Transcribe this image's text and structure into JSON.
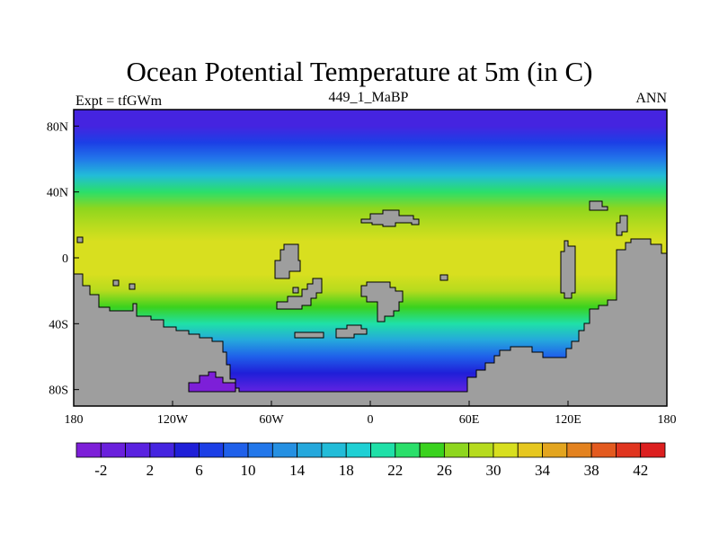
{
  "chart_data": {
    "type": "heatmap",
    "title": "Ocean Potential Temperature at 5m (in C)",
    "left_string": "Expt = tfGWm",
    "center_string": "449_1_MaBP",
    "right_string": "ANN",
    "x_ticks": [
      "180",
      "120W",
      "60W",
      "0",
      "60E",
      "120E",
      "180"
    ],
    "x_tick_values": [
      -180,
      -120,
      -60,
      0,
      60,
      120,
      180
    ],
    "y_ticks": [
      "80N",
      "40N",
      "0",
      "40S",
      "80S"
    ],
    "y_tick_values": [
      80,
      40,
      0,
      -40,
      -80
    ],
    "xlim": [
      -180,
      180
    ],
    "ylim": [
      -90,
      90
    ],
    "zonal_mean_profile": {
      "latitude": [
        -85,
        -80,
        -70,
        -60,
        -50,
        -40,
        -30,
        -20,
        -10,
        0,
        10,
        20,
        30,
        40,
        50,
        60,
        70,
        80,
        85
      ],
      "temperature": [
        -2,
        1,
        4,
        9,
        14,
        20,
        25,
        28,
        30,
        30,
        30,
        29,
        27,
        23,
        17,
        11,
        6,
        3,
        2
      ]
    },
    "colorbar": {
      "colors": [
        "#7d1fd8",
        "#6a20dc",
        "#5a22e0",
        "#4524e0",
        "#1f1fd8",
        "#1c3fe6",
        "#1f60ea",
        "#2277ea",
        "#2590e2",
        "#25a8dc",
        "#22bcd8",
        "#1fd0d4",
        "#1fe0a8",
        "#2adf6a",
        "#3ad21e",
        "#8ed61e",
        "#b6db1e",
        "#d8df1f",
        "#e6c71f",
        "#e3a51f",
        "#e3821f",
        "#e35a1f",
        "#e0351f",
        "#dc1f1f"
      ],
      "tick_labels": [
        "-2",
        "2",
        "6",
        "10",
        "14",
        "18",
        "22",
        "26",
        "30",
        "34",
        "38",
        "42"
      ],
      "tick_values": [
        -2,
        2,
        6,
        10,
        14,
        18,
        22,
        26,
        30,
        34,
        38,
        42
      ]
    },
    "land_color": "#9e9e9e"
  }
}
